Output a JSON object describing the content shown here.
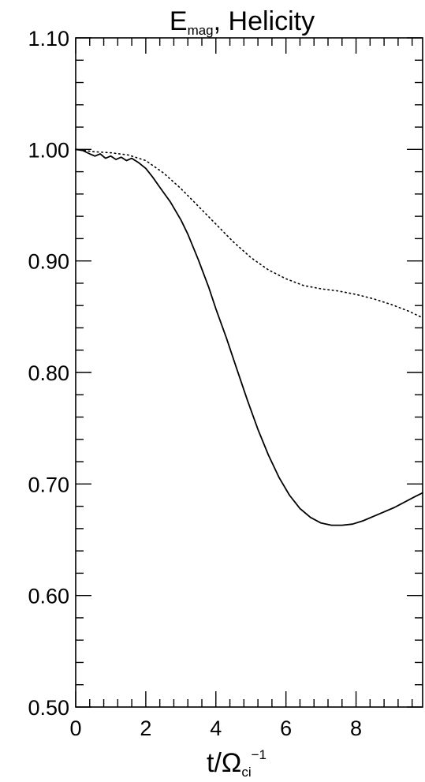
{
  "chart_data": {
    "type": "line",
    "title": {
      "main": "E",
      "subscript": "mag",
      "rest": ", Helicity"
    },
    "xlabel": {
      "main": "t/Ω",
      "subscript": "ci",
      "superscript": "−1"
    },
    "ylabel": "",
    "xlim": [
      0,
      9.9
    ],
    "ylim": [
      0.5,
      1.1
    ],
    "x_ticks": [
      0,
      2,
      4,
      6,
      8
    ],
    "x_tick_labels": [
      "0",
      "2",
      "4",
      "6",
      "8"
    ],
    "y_ticks": [
      0.5,
      0.6,
      0.7,
      0.8,
      0.9,
      1.0,
      1.1
    ],
    "y_tick_labels": [
      "0.50",
      "0.60",
      "0.70",
      "0.80",
      "0.90",
      "1.00",
      "1.10"
    ],
    "grid": false,
    "legend": "none",
    "series": [
      {
        "style": "solid",
        "color": "#000000",
        "x": [
          0,
          0.2,
          0.4,
          0.55,
          0.7,
          0.85,
          1.0,
          1.15,
          1.3,
          1.45,
          1.6,
          1.8,
          2.0,
          2.2,
          2.4,
          2.7,
          3.0,
          3.2,
          3.5,
          3.8,
          4.0,
          4.3,
          4.6,
          4.9,
          5.2,
          5.5,
          5.8,
          6.1,
          6.4,
          6.7,
          7.0,
          7.3,
          7.6,
          7.9,
          8.2,
          8.5,
          8.8,
          9.1,
          9.4,
          9.7,
          9.9
        ],
        "y": [
          1.0,
          0.999,
          0.996,
          0.994,
          0.996,
          0.992,
          0.994,
          0.991,
          0.993,
          0.99,
          0.992,
          0.988,
          0.983,
          0.975,
          0.966,
          0.953,
          0.937,
          0.924,
          0.901,
          0.876,
          0.857,
          0.831,
          0.803,
          0.775,
          0.749,
          0.726,
          0.706,
          0.69,
          0.678,
          0.67,
          0.665,
          0.663,
          0.663,
          0.664,
          0.667,
          0.671,
          0.675,
          0.679,
          0.684,
          0.689,
          0.692
        ]
      },
      {
        "style": "dotted",
        "color": "#000000",
        "x": [
          0,
          0.5,
          1.0,
          1.5,
          2.0,
          2.5,
          3.0,
          3.5,
          4.0,
          4.5,
          5.0,
          5.5,
          6.0,
          6.5,
          7.0,
          7.5,
          8.0,
          8.5,
          9.0,
          9.5,
          9.9
        ],
        "y": [
          1.0,
          0.998,
          0.997,
          0.995,
          0.99,
          0.979,
          0.965,
          0.949,
          0.933,
          0.917,
          0.903,
          0.892,
          0.884,
          0.878,
          0.875,
          0.873,
          0.87,
          0.866,
          0.861,
          0.855,
          0.849
        ]
      }
    ]
  }
}
